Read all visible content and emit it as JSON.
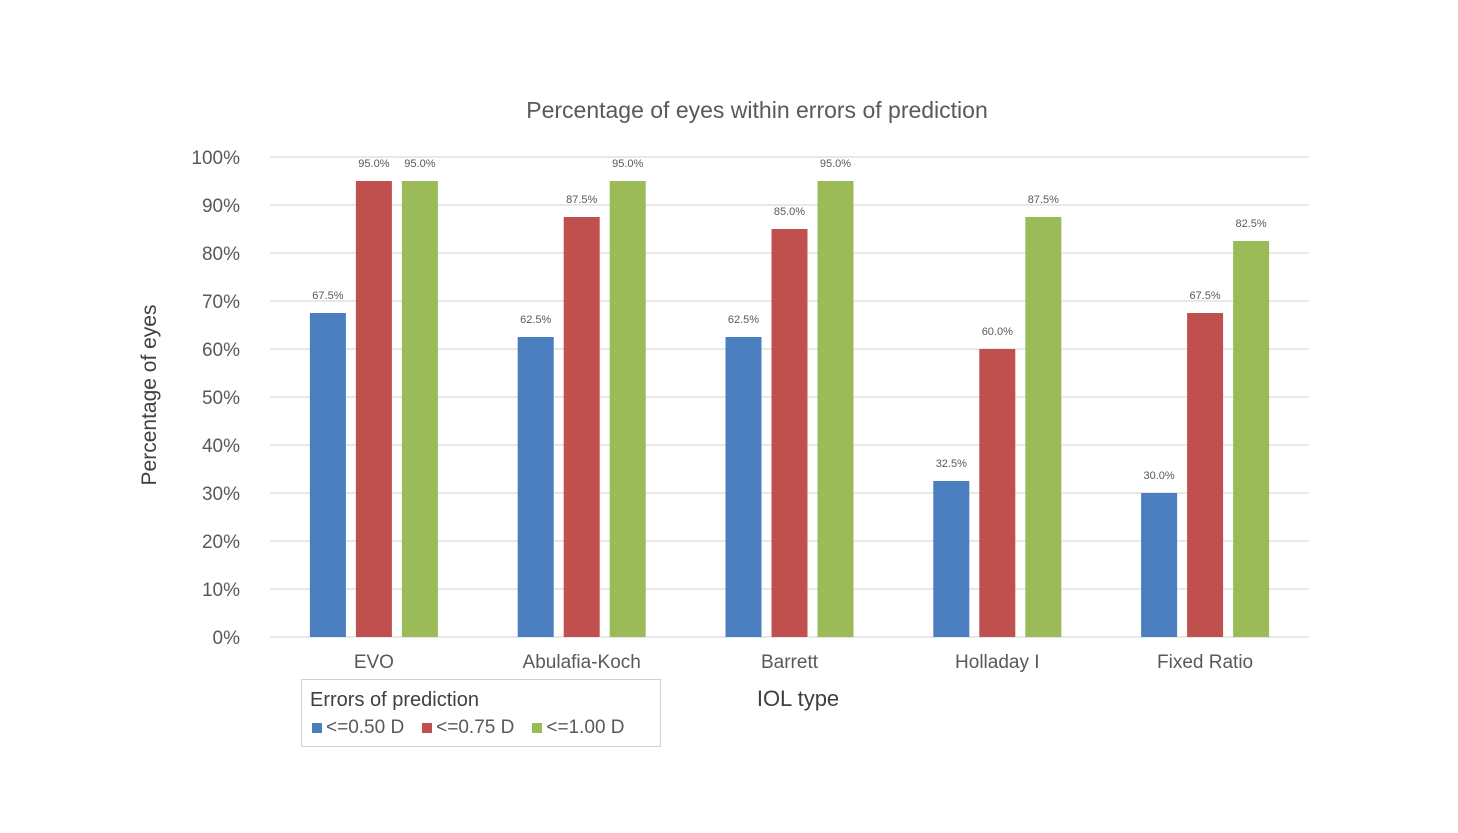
{
  "chart_data": {
    "type": "bar",
    "title": "Percentage of eyes within errors of prediction",
    "xlabel": "IOL type",
    "ylabel": "Percentage of eyes",
    "categories": [
      "EVO",
      "Abulafia-Koch",
      "Barrett",
      "Holladay I",
      "Fixed Ratio"
    ],
    "series": [
      {
        "name": "<=0.50 D",
        "color": "#4a7ebf",
        "values": [
          67.5,
          62.5,
          62.5,
          32.5,
          30.0
        ],
        "labels": [
          "67.5%",
          "62.5%",
          "62.5%",
          "32.5%",
          "30.0%"
        ]
      },
      {
        "name": "<=0.75 D",
        "color": "#c0504d",
        "values": [
          95.0,
          87.5,
          85.0,
          60.0,
          67.5
        ],
        "labels": [
          "95.0%",
          "87.5%",
          "85.0%",
          "60.0%",
          "67.5%"
        ]
      },
      {
        "name": "<=1.00 D",
        "color": "#9bbb59",
        "values": [
          95.0,
          95.0,
          95.0,
          87.5,
          82.5
        ],
        "labels": [
          "95.0%",
          "95.0%",
          "95.0%",
          "87.5%",
          "82.5%"
        ]
      }
    ],
    "ylim": [
      0,
      100
    ],
    "yticks": [
      "0%",
      "10%",
      "20%",
      "30%",
      "40%",
      "50%",
      "60%",
      "70%",
      "80%",
      "90%",
      "100%"
    ],
    "grid": true,
    "legend": {
      "title": "Errors of prediction",
      "placement": "bottom-left"
    }
  }
}
